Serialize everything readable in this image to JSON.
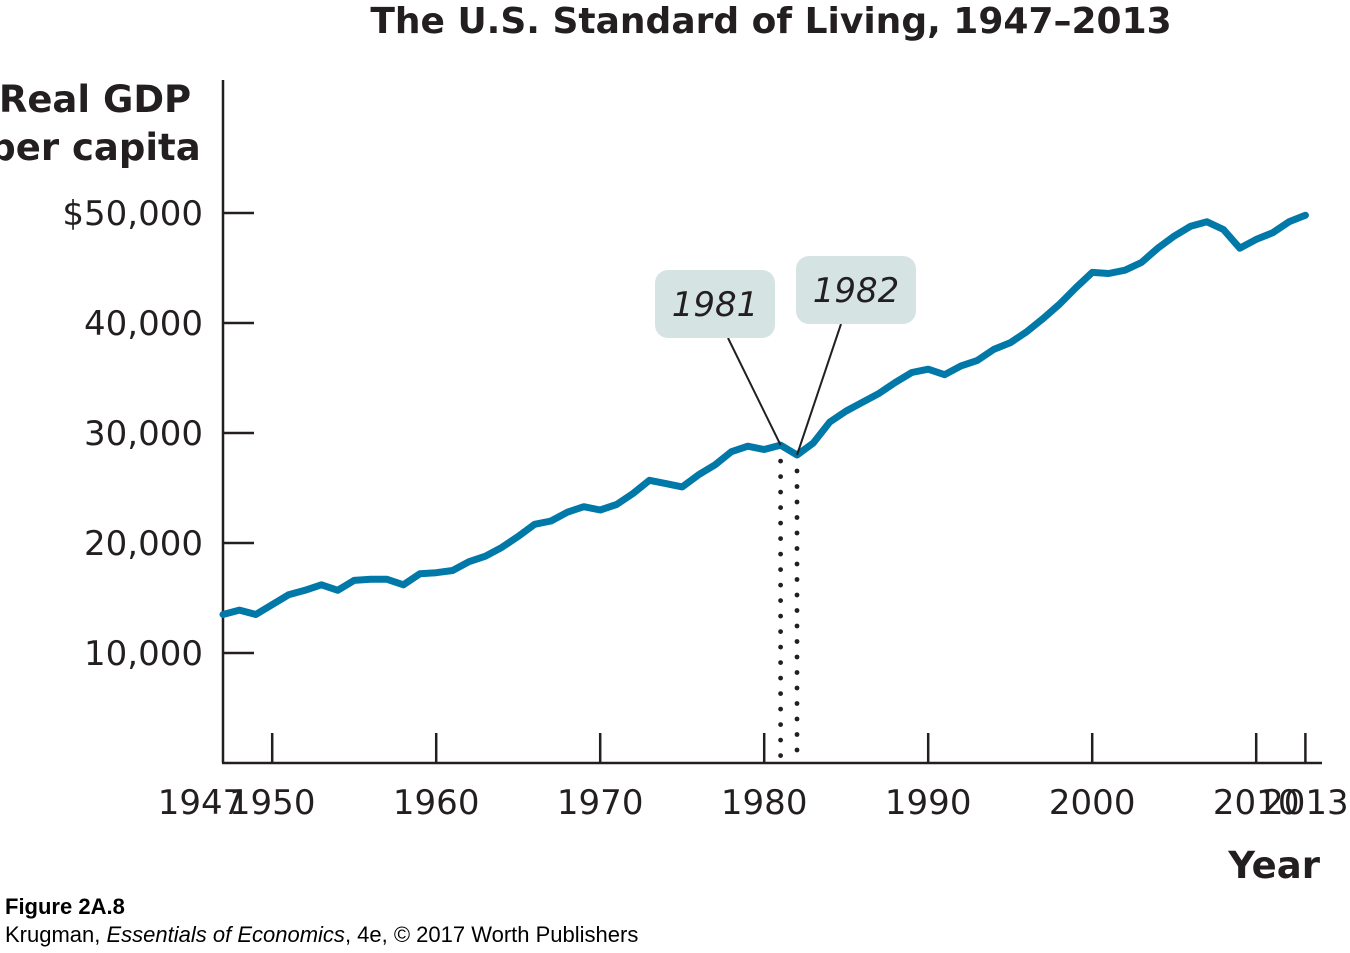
{
  "chart_data": {
    "type": "line",
    "title": "The U.S. Standard of Living, 1947–2013",
    "ylabel_lines": [
      "Real GDP",
      "per capita"
    ],
    "xlabel": "Year",
    "xlim": [
      1947,
      2014.5
    ],
    "ylim": [
      0,
      55000
    ],
    "grid": false,
    "y_ticks": [
      {
        "value": 10000,
        "label": "10,000"
      },
      {
        "value": 20000,
        "label": "20,000"
      },
      {
        "value": 30000,
        "label": "30,000"
      },
      {
        "value": 40000,
        "label": "40,000"
      },
      {
        "value": 50000,
        "label": "$50,000"
      }
    ],
    "x_ticks": [
      {
        "value": 1947,
        "label": "1947",
        "mark": false
      },
      {
        "value": 1950,
        "label": "1950",
        "mark": true
      },
      {
        "value": 1960,
        "label": "1960",
        "mark": true
      },
      {
        "value": 1970,
        "label": "1970",
        "mark": true
      },
      {
        "value": 1980,
        "label": "1980",
        "mark": true
      },
      {
        "value": 1990,
        "label": "1990",
        "mark": true
      },
      {
        "value": 2000,
        "label": "2000",
        "mark": true
      },
      {
        "value": 2010,
        "label": "2010",
        "mark": true
      },
      {
        "value": 2013,
        "label": "2013",
        "mark": true
      }
    ],
    "series": [
      {
        "color": "#0078a8",
        "x": [
          1947,
          1948,
          1949,
          1950,
          1951,
          1952,
          1953,
          1954,
          1955,
          1956,
          1957,
          1958,
          1959,
          1960,
          1961,
          1962,
          1963,
          1964,
          1965,
          1966,
          1967,
          1968,
          1969,
          1970,
          1971,
          1972,
          1973,
          1974,
          1975,
          1976,
          1977,
          1978,
          1979,
          1980,
          1981,
          1982,
          1983,
          1984,
          1985,
          1986,
          1987,
          1988,
          1989,
          1990,
          1991,
          1992,
          1993,
          1994,
          1995,
          1996,
          1997,
          1998,
          1999,
          2000,
          2001,
          2002,
          2003,
          2004,
          2005,
          2006,
          2007,
          2008,
          2009,
          2010,
          2011,
          2012,
          2013
        ],
        "y": [
          13500,
          13900,
          13500,
          14400,
          15300,
          15700,
          16200,
          15700,
          16600,
          16700,
          16700,
          16200,
          17200,
          17300,
          17500,
          18300,
          18800,
          19600,
          20600,
          21700,
          22000,
          22800,
          23300,
          23000,
          23500,
          24500,
          25700,
          25400,
          25100,
          26200,
          27100,
          28300,
          28800,
          28500,
          28900,
          28000,
          29100,
          31000,
          32000,
          32800,
          33600,
          34600,
          35500,
          35800,
          35300,
          36100,
          36600,
          37600,
          38200,
          39200,
          40400,
          41700,
          43200,
          44600,
          44500,
          44800,
          45500,
          46800,
          47900,
          48800,
          49200,
          48500,
          46800,
          47600,
          48200,
          49200,
          49800
        ]
      }
    ],
    "annotations": [
      {
        "label": "1981",
        "x": 1981,
        "y": 28900
      },
      {
        "label": "1982",
        "x": 1982,
        "y": 28000
      }
    ]
  },
  "caption": {
    "figure": "Figure 2A.8",
    "author": "Krugman, ",
    "book": "Essentials of Economics",
    "rest": ", 4e, © 2017 Worth Publishers"
  }
}
